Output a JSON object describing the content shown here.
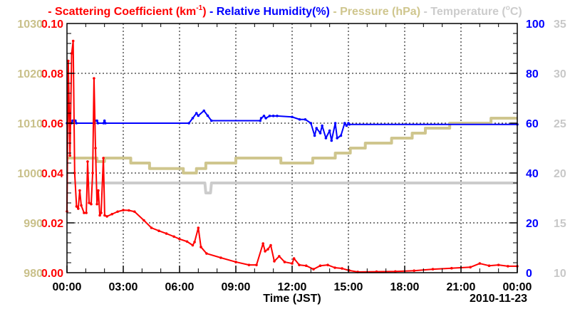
{
  "chart_data": {
    "type": "line",
    "title": "",
    "xlabel": "Time (JST)",
    "date_label": "2010-11-23",
    "x_unit": "hours since 00:00",
    "xlim": [
      0,
      24
    ],
    "x_ticks": [
      0,
      3,
      6,
      9,
      12,
      15,
      18,
      21,
      24
    ],
    "x_tick_labels": [
      "00:00",
      "03:00",
      "06:00",
      "09:00",
      "12:00",
      "15:00",
      "18:00",
      "21:00",
      "00:00"
    ],
    "grid": true,
    "legend_position": "top",
    "axes": {
      "scattering": {
        "side": "left-inner",
        "ylim": [
          0,
          0.1
        ],
        "ticks": [
          "0.00",
          "0.02",
          "0.04",
          "0.06",
          "0.08",
          "0.10"
        ],
        "color": "#ff0000"
      },
      "pressure": {
        "side": "left-outer",
        "ylim": [
          980,
          1030
        ],
        "ticks": [
          "980",
          "990",
          "1000",
          "1010",
          "1020",
          "1030"
        ],
        "color": "#c9c08a"
      },
      "humidity": {
        "side": "right-inner",
        "ylim": [
          0,
          100
        ],
        "ticks": [
          "0",
          "20",
          "40",
          "60",
          "80",
          "100"
        ],
        "color": "#0000ff"
      },
      "temperature": {
        "side": "right-outer",
        "ylim": [
          10,
          35
        ],
        "ticks": [
          "10",
          "15",
          "20",
          "25",
          "30",
          "35"
        ],
        "color": "#c8c8c8"
      }
    },
    "legend": [
      {
        "dash": "-",
        "label": "Scattering Coefficient (km",
        "sup": "-1",
        "tail": ")",
        "color": "#ff0000"
      },
      {
        "dash": "-",
        "label": "Relative Humidity(%)",
        "sup": "",
        "tail": "",
        "color": "#0000ff"
      },
      {
        "dash": "-",
        "label": "Pressure (hPa)",
        "sup": "",
        "tail": "",
        "color": "#cfc68e"
      },
      {
        "dash": "-",
        "label": "Temperature (",
        "sup": "o",
        "tail": "C)",
        "color": "#cccccc"
      }
    ],
    "series": [
      {
        "name": "Scattering Coefficient",
        "axis": "scattering",
        "color": "#ff0000",
        "markers": true,
        "x": [
          0,
          0.07,
          0.16,
          0.25,
          0.33,
          0.41,
          0.51,
          0.6,
          0.68,
          0.76,
          0.91,
          1.03,
          1.1,
          1.18,
          1.29,
          1.37,
          1.44,
          1.52,
          1.6,
          1.67,
          1.75,
          1.82,
          1.94,
          2.01,
          2.13,
          2.4,
          2.7,
          3.0,
          3.3,
          3.6,
          4.1,
          4.5,
          4.9,
          5.3,
          5.7,
          6.0,
          6.4,
          6.7,
          6.8,
          7.0,
          7.14,
          7.44,
          8.2,
          9.0,
          9.7,
          10.1,
          10.45,
          10.56,
          10.71,
          10.86,
          11.05,
          11.31,
          11.6,
          12.0,
          12.1,
          12.38,
          12.75,
          13.14,
          13.5,
          13.9,
          14.28,
          14.66,
          15.04,
          15.5,
          16.5,
          17.5,
          18.5,
          19.5,
          20.5,
          21.5,
          22.0,
          22.5,
          23.0,
          23.5,
          24.0
        ],
        "y": [
          0.0246,
          0.085,
          0.047,
          0.088,
          0.093,
          0.04,
          0.0266,
          0.0257,
          0.033,
          0.027,
          0.024,
          0.024,
          0.0446,
          0.028,
          0.0275,
          0.04,
          0.078,
          0.05,
          0.0275,
          0.033,
          0.023,
          0.024,
          0.046,
          0.023,
          0.0226,
          0.0235,
          0.0245,
          0.0251,
          0.025,
          0.0245,
          0.021,
          0.018,
          0.0168,
          0.0157,
          0.0145,
          0.0135,
          0.0125,
          0.011,
          0.0123,
          0.018,
          0.0103,
          0.0077,
          0.006,
          0.0043,
          0.0031,
          0.0031,
          0.0117,
          0.0086,
          0.0094,
          0.011,
          0.0046,
          0.0066,
          0.0043,
          0.0037,
          0.0057,
          0.0031,
          0.0028,
          0.0014,
          0.0028,
          0.0031,
          0.002,
          0.0017,
          0.0009,
          0.0003,
          0.0004,
          0.0005,
          0.0008,
          0.0014,
          0.0018,
          0.0022,
          0.0037,
          0.0028,
          0.0031,
          0.0026,
          0.0026
        ]
      },
      {
        "name": "Relative Humidity",
        "axis": "humidity",
        "color": "#0000ff",
        "markers": true,
        "x": [
          0,
          0.25,
          0.3,
          0.45,
          0.5,
          1.45,
          1.5,
          1.6,
          1.65,
          1.95,
          2.0,
          2.05,
          6.5,
          6.7,
          6.9,
          7.0,
          7.3,
          7.5,
          7.7,
          10.3,
          10.35,
          10.5,
          10.6,
          10.8,
          11.0,
          11.2,
          12.0,
          12.4,
          12.7,
          13.0,
          13.2,
          13.3,
          13.5,
          13.6,
          13.8,
          14.0,
          14.1,
          14.3,
          14.4,
          14.6,
          14.8,
          14.9,
          15.0,
          15.05,
          24.0
        ],
        "y": [
          60,
          60,
          61,
          61,
          60,
          60,
          61,
          61,
          60,
          60,
          61,
          60,
          60,
          62,
          64,
          63,
          65,
          63,
          61,
          61,
          62,
          62.9,
          62,
          62.9,
          62.9,
          62.9,
          62.5,
          61.5,
          61.5,
          60,
          55,
          58,
          56,
          59,
          54,
          57,
          53,
          60,
          54,
          55,
          60,
          59,
          60,
          59.5,
          59.5
        ]
      },
      {
        "name": "Pressure",
        "axis": "pressure",
        "color": "#cfc68e",
        "markers": false,
        "step": true,
        "x": [
          0,
          1.6,
          2.0,
          3.4,
          4.4,
          6.2,
          6.9,
          7.4,
          9.0,
          11.4,
          13.1,
          14.3,
          15.1,
          15.9,
          17.3,
          18.4,
          19.1,
          20.4,
          22.6,
          24
        ],
        "y": [
          1003,
          1002.3,
          1003,
          1002,
          1000.9,
          1000,
          1000.9,
          1002,
          1003,
          1002,
          1003,
          1004,
          1005,
          1006,
          1007,
          1008,
          1009,
          1010,
          1011,
          1011
        ]
      },
      {
        "name": "Temperature",
        "axis": "temperature",
        "color": "#cccccc",
        "markers": false,
        "x": [
          0,
          7.35,
          7.4,
          7.65,
          7.7,
          24
        ],
        "y": [
          19,
          19,
          18,
          18,
          19,
          19
        ]
      }
    ]
  }
}
